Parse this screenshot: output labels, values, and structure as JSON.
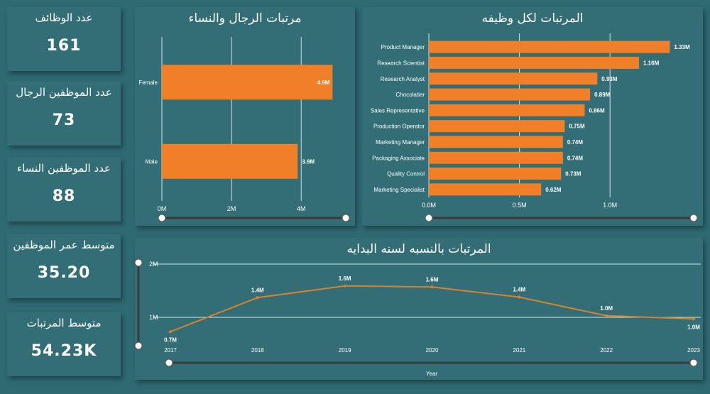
{
  "colors": {
    "bar": "#f07f27",
    "line": "#d9822e",
    "grid": "#cfe5ea",
    "slider": "#3a3a3a"
  },
  "cards": [
    {
      "title": "عدد الوظائف",
      "value": "161"
    },
    {
      "title": "عدد الموظفين الرجال",
      "value": "73"
    },
    {
      "title": "عدد الموظفين النساء",
      "value": "88"
    },
    {
      "title": "متوسط عمر الموظفين",
      "value": "35.20"
    },
    {
      "title": "متوسط المرتبات",
      "value": "54.23K"
    }
  ],
  "chart_data": [
    {
      "type": "bar",
      "orientation": "horizontal",
      "title": "مرتبات الرجال والنساء",
      "categories": [
        "Female",
        "Male"
      ],
      "values": [
        4.9,
        3.9
      ],
      "data_labels": [
        "4.9M",
        "3.9M"
      ],
      "xticks": [
        "0M",
        "2M",
        "4M"
      ],
      "xtick_values": [
        0,
        2,
        4
      ],
      "xlim": [
        0,
        5.3
      ],
      "grid": true
    },
    {
      "type": "bar",
      "orientation": "horizontal",
      "title": "المرتبات لكل وظيفه",
      "categories": [
        "Product Manager",
        "Research Scientist",
        "Research Analyst",
        "Chocolatier",
        "Sales Representative",
        "Production Operator",
        "Marketing Manager",
        "Packaging Associate",
        "Quality Control",
        "Marketing Specialist"
      ],
      "values": [
        1.33,
        1.16,
        0.93,
        0.89,
        0.86,
        0.75,
        0.74,
        0.74,
        0.73,
        0.62
      ],
      "data_labels": [
        "1.33M",
        "1.16M",
        "0.93M",
        "0.89M",
        "0.86M",
        "0.75M",
        "0.74M",
        "0.74M",
        "0.73M",
        "0.62M"
      ],
      "xticks": [
        "0.0M",
        "0.5M",
        "1.0M"
      ],
      "xtick_values": [
        0,
        0.5,
        1.0
      ],
      "xlim": [
        0,
        1.45
      ],
      "grid": true
    },
    {
      "type": "line",
      "title": "المرتبات بالنسبه لسنه البدايه",
      "x": [
        "2017",
        "2018",
        "2019",
        "2020",
        "2021",
        "2022",
        "2023"
      ],
      "values": [
        0.73,
        1.37,
        1.59,
        1.57,
        1.38,
        1.03,
        0.97
      ],
      "data_labels": [
        "0.7M",
        "1.4M",
        "1.6M",
        "1.6M",
        "1.4M",
        "1.0M",
        "1.0M"
      ],
      "yticks": [
        "1M",
        "2M"
      ],
      "ytick_values": [
        1,
        2
      ],
      "ylim": [
        0.7,
        2
      ],
      "xlabel": "Year",
      "grid": true
    }
  ]
}
